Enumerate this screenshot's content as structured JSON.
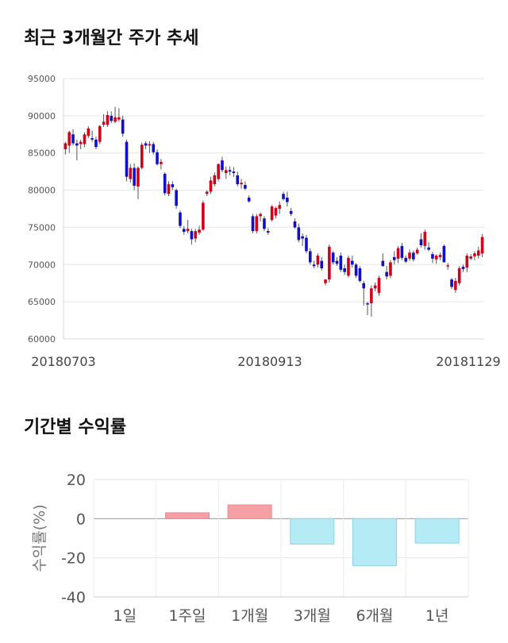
{
  "chart_data": [
    {
      "type": "candlestick",
      "title": "최근 3개월간 주가 추세",
      "ylim": [
        60000,
        95000
      ],
      "y_ticks": [
        60000,
        65000,
        70000,
        75000,
        80000,
        85000,
        90000,
        95000
      ],
      "x_tick_labels": [
        "20180703",
        "20180913",
        "20181129"
      ],
      "grid": true,
      "colors": {
        "up": "#d0021b",
        "down": "#1010c8"
      },
      "ohlc": [
        [
          85500,
          86500,
          84800,
          86300
        ],
        [
          86000,
          88000,
          85000,
          87800
        ],
        [
          87500,
          88200,
          86000,
          86300
        ],
        [
          86300,
          86800,
          84000,
          86000
        ],
        [
          86200,
          86800,
          85500,
          86500
        ],
        [
          86200,
          87800,
          85800,
          87500
        ],
        [
          87300,
          88600,
          87000,
          88300
        ],
        [
          87000,
          88000,
          86500,
          86800
        ],
        [
          86800,
          87200,
          85500,
          85800
        ],
        [
          86500,
          88800,
          86200,
          88600
        ],
        [
          88800,
          90200,
          88500,
          89200
        ],
        [
          88800,
          90600,
          88500,
          90100
        ],
        [
          90000,
          90600,
          89000,
          89300
        ],
        [
          89200,
          91200,
          89000,
          89800
        ],
        [
          89500,
          91000,
          89200,
          89800
        ],
        [
          89500,
          90000,
          87200,
          87600
        ],
        [
          86500,
          86800,
          81200,
          81800
        ],
        [
          81500,
          83500,
          81000,
          83000
        ],
        [
          83000,
          83600,
          80000,
          80600
        ],
        [
          80500,
          83200,
          78800,
          83000
        ],
        [
          83000,
          86400,
          82800,
          86100
        ],
        [
          86300,
          86600,
          85500,
          86000
        ],
        [
          86000,
          86600,
          85000,
          86200
        ],
        [
          86200,
          86500,
          84800,
          85100
        ],
        [
          85100,
          85500,
          83300,
          83500
        ],
        [
          83500,
          84200,
          82800,
          83800
        ],
        [
          82200,
          82400,
          79300,
          79600
        ],
        [
          79500,
          81200,
          79200,
          80800
        ],
        [
          80800,
          81200,
          80000,
          80400
        ],
        [
          80000,
          80200,
          77500,
          77900
        ],
        [
          77000,
          77300,
          74900,
          75200
        ],
        [
          74800,
          75200,
          74000,
          74400
        ],
        [
          74500,
          76000,
          74200,
          74800
        ],
        [
          74500,
          74800,
          72700,
          73400
        ],
        [
          73500,
          74800,
          73000,
          74500
        ],
        [
          74300,
          75200,
          74000,
          74700
        ],
        [
          74700,
          78600,
          74500,
          78300
        ],
        [
          79500,
          80000,
          79200,
          79800
        ],
        [
          79800,
          81800,
          79500,
          81300
        ],
        [
          80800,
          82400,
          80500,
          82000
        ],
        [
          81500,
          83600,
          81200,
          83500
        ],
        [
          84000,
          84500,
          82400,
          82700
        ],
        [
          82300,
          83200,
          81500,
          82700
        ],
        [
          82700,
          83200,
          82000,
          82500
        ],
        [
          82500,
          83100,
          81800,
          82300
        ],
        [
          82000,
          82500,
          80500,
          80800
        ],
        [
          80800,
          81500,
          80200,
          81000
        ],
        [
          80700,
          81200,
          80000,
          80200
        ],
        [
          79000,
          79300,
          78300,
          78500
        ],
        [
          76500,
          76800,
          74200,
          74500
        ],
        [
          74500,
          76800,
          74200,
          76500
        ],
        [
          76500,
          77000,
          75800,
          76800
        ],
        [
          76200,
          76500,
          74500,
          74800
        ],
        [
          74500,
          74900,
          74000,
          74300
        ],
        [
          76000,
          78000,
          75800,
          77800
        ],
        [
          76600,
          77800,
          76200,
          77600
        ],
        [
          77500,
          78500,
          76800,
          78000
        ],
        [
          79500,
          79800,
          78600,
          78800
        ],
        [
          79000,
          79800,
          77800,
          78400
        ],
        [
          77200,
          77600,
          76500,
          76800
        ],
        [
          75800,
          76200,
          74800,
          75000
        ],
        [
          75000,
          75500,
          73000,
          73300
        ],
        [
          73800,
          74200,
          72500,
          73500
        ],
        [
          73600,
          74000,
          71500,
          71800
        ],
        [
          71800,
          72200,
          70000,
          70300
        ],
        [
          70000,
          70500,
          69500,
          69800
        ],
        [
          70000,
          71500,
          69600,
          71200
        ],
        [
          70500,
          71000,
          69200,
          69500
        ],
        [
          67500,
          68000,
          67200,
          68000
        ],
        [
          68000,
          72700,
          67600,
          72400
        ],
        [
          71600,
          71800,
          70000,
          70300
        ],
        [
          70500,
          71000,
          69800,
          70100
        ],
        [
          71200,
          71600,
          69000,
          69300
        ],
        [
          69500,
          70000,
          68600,
          69000
        ],
        [
          68500,
          71200,
          68300,
          70900
        ],
        [
          70500,
          71200,
          69600,
          70000
        ],
        [
          70000,
          70200,
          68200,
          68500
        ],
        [
          69500,
          69800,
          67600,
          67800
        ],
        [
          67500,
          67800,
          64500,
          66800
        ],
        [
          64800,
          65000,
          63200,
          64700
        ],
        [
          64800,
          67200,
          63000,
          66800
        ],
        [
          66800,
          67600,
          66400,
          67200
        ],
        [
          66200,
          68500,
          65800,
          68200
        ],
        [
          70500,
          71500,
          69700,
          69800
        ],
        [
          69000,
          69800,
          68000,
          68400
        ],
        [
          68500,
          70600,
          68200,
          70300
        ],
        [
          71000,
          71800,
          70000,
          70600
        ],
        [
          70800,
          72500,
          70200,
          72200
        ],
        [
          72500,
          72900,
          70600,
          70900
        ],
        [
          70900,
          71200,
          70200,
          70400
        ],
        [
          70800,
          72000,
          70500,
          71600
        ],
        [
          71600,
          71900,
          70400,
          70700
        ],
        [
          71500,
          72300,
          71300,
          72000
        ],
        [
          73400,
          74200,
          72300,
          72600
        ],
        [
          72500,
          74700,
          72000,
          74400
        ],
        [
          72300,
          73000,
          71800,
          72000
        ],
        [
          71400,
          71700,
          70200,
          70800
        ],
        [
          70700,
          71400,
          70100,
          71200
        ],
        [
          71000,
          71600,
          70600,
          71300
        ],
        [
          72500,
          72700,
          70300,
          70300
        ],
        [
          69800,
          70200,
          69300,
          69900
        ],
        [
          68000,
          68200,
          66700,
          67000
        ],
        [
          66600,
          68200,
          66200,
          67800
        ],
        [
          67500,
          69800,
          67200,
          69500
        ],
        [
          69700,
          70000,
          69000,
          69400
        ],
        [
          69600,
          71500,
          69000,
          71200
        ],
        [
          70800,
          71400,
          70600,
          71100
        ],
        [
          71100,
          71800,
          70600,
          71500
        ],
        [
          71200,
          72400,
          70800,
          71900
        ],
        [
          71500,
          74100,
          71000,
          73700
        ]
      ]
    },
    {
      "type": "bar",
      "title": "기간별 수익률",
      "ylabel": "수익률(%)",
      "categories": [
        "1일",
        "1주일",
        "1개월",
        "3개월",
        "6개월",
        "1년"
      ],
      "values": [
        0,
        3,
        7,
        -13,
        -24,
        -12.5
      ],
      "ylim": [
        -40,
        20
      ],
      "y_ticks": [
        20,
        0,
        -20,
        -40
      ],
      "grid": true,
      "colors": {
        "positive_fill": "#f5a0a5",
        "positive_stroke": "#ea8a90",
        "negative_fill": "#b5ebf5",
        "negative_stroke": "#8fd2e2"
      }
    }
  ]
}
